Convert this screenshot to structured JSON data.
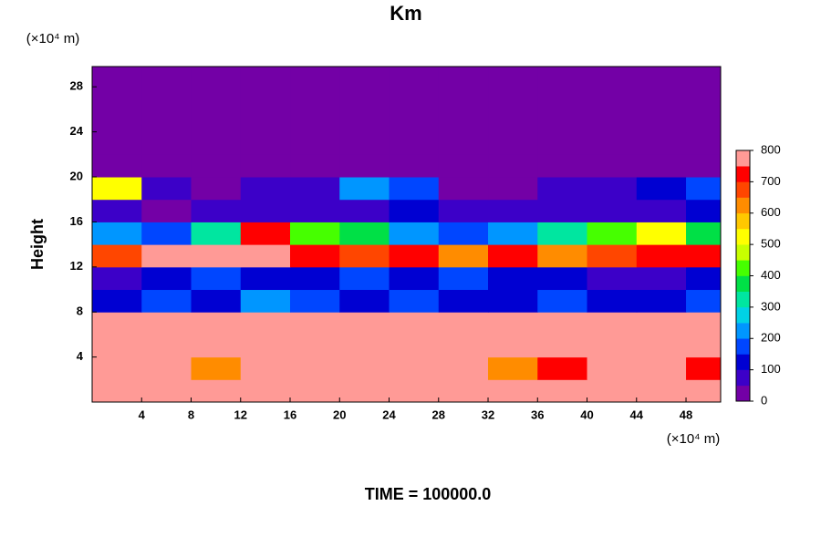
{
  "chart_data": {
    "type": "contour",
    "title": "Km",
    "y_unit": "(×10⁴ m)",
    "x_unit": "(×10⁴ m)",
    "ylabel": "Height",
    "footer": "TIME = 100000.0",
    "xlim": [
      0,
      50.8
    ],
    "ylim": [
      0,
      29.8
    ],
    "xticks": [
      4,
      8,
      12,
      16,
      20,
      24,
      28,
      32,
      36,
      40,
      44,
      48
    ],
    "yticks": [
      4,
      8,
      12,
      16,
      20,
      24,
      28
    ],
    "x": [
      2,
      6,
      10,
      14,
      18,
      22,
      26,
      30,
      34,
      38,
      42,
      46,
      50
    ],
    "y": [
      1,
      3,
      5,
      7,
      9,
      11,
      13,
      15,
      17,
      19,
      21,
      23,
      25,
      27,
      29
    ],
    "z": [
      [
        800,
        800,
        800,
        800,
        800,
        800,
        800,
        800,
        800,
        800,
        800,
        800,
        800
      ],
      [
        800,
        800,
        600,
        800,
        800,
        800,
        800,
        800,
        600,
        700,
        800,
        800,
        700
      ],
      [
        800,
        800,
        800,
        800,
        800,
        800,
        800,
        800,
        800,
        800,
        800,
        800,
        800
      ],
      [
        800,
        800,
        800,
        800,
        800,
        800,
        800,
        800,
        800,
        800,
        800,
        800,
        800
      ],
      [
        100,
        150,
        100,
        200,
        150,
        100,
        150,
        100,
        100,
        150,
        100,
        100,
        150
      ],
      [
        50,
        100,
        150,
        100,
        100,
        150,
        100,
        150,
        100,
        100,
        50,
        50,
        100
      ],
      [
        650,
        800,
        800,
        750,
        700,
        650,
        700,
        600,
        700,
        600,
        650,
        700,
        700
      ],
      [
        200,
        150,
        300,
        700,
        400,
        350,
        200,
        150,
        200,
        300,
        400,
        500,
        350
      ],
      [
        50,
        0,
        50,
        50,
        50,
        50,
        100,
        50,
        50,
        50,
        50,
        50,
        100
      ],
      [
        500,
        50,
        0,
        50,
        50,
        200,
        150,
        0,
        0,
        50,
        50,
        100,
        150
      ],
      [
        0,
        0,
        0,
        0,
        0,
        0,
        0,
        0,
        0,
        0,
        0,
        0,
        0
      ],
      [
        0,
        0,
        0,
        0,
        0,
        0,
        0,
        0,
        0,
        0,
        0,
        0,
        0
      ],
      [
        0,
        0,
        0,
        0,
        0,
        0,
        0,
        0,
        0,
        0,
        0,
        0,
        0
      ],
      [
        0,
        0,
        0,
        0,
        0,
        0,
        0,
        0,
        0,
        0,
        0,
        0,
        0
      ],
      [
        0,
        0,
        0,
        0,
        0,
        0,
        0,
        0,
        0,
        0,
        0,
        0,
        0
      ]
    ],
    "levels": [
      0,
      50,
      100,
      150,
      200,
      250,
      300,
      350,
      400,
      450,
      500,
      550,
      600,
      650,
      700,
      750,
      800
    ],
    "colors": [
      "#7300a6",
      "#3c00c8",
      "#0000d2",
      "#0046ff",
      "#0096ff",
      "#00d2e6",
      "#00e6a0",
      "#00e046",
      "#46ff00",
      "#c8ff00",
      "#ffff00",
      "#ffc800",
      "#ff8c00",
      "#ff4600",
      "#ff0000",
      "#ff9a96"
    ],
    "cticks": [
      0,
      100,
      200,
      300,
      400,
      500,
      600,
      700,
      800
    ]
  }
}
